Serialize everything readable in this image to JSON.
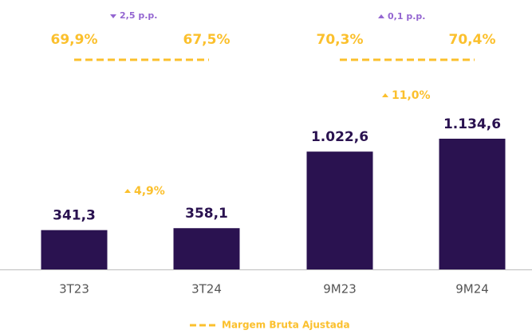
{
  "chart_data": {
    "type": "bar",
    "categories": [
      "3T23",
      "3T24",
      "9M23",
      "9M24"
    ],
    "values": [
      341.3,
      358.1,
      1022.6,
      1134.6
    ],
    "value_labels": [
      "341,3",
      "358,1",
      "1.022,6",
      "1.134,6"
    ],
    "color": "#2a1250",
    "margin": {
      "name": "Margem Bruta Ajustada",
      "color": "#fbc02d",
      "values": [
        69.9,
        67.5,
        70.3,
        70.4
      ],
      "value_labels": [
        "69,9%",
        "67,5%",
        "70,3%",
        "70,4%"
      ]
    },
    "annotations": [
      {
        "text": "2,5 p.p.",
        "direction": "down",
        "color": "#9466d1"
      },
      {
        "text": "0,1 p.p.",
        "direction": "up",
        "color": "#9466d1"
      },
      {
        "text": "4,9%",
        "direction": "up",
        "color": "#fbc02d"
      },
      {
        "text": "11,0%",
        "direction": "up",
        "color": "#fbc02d"
      }
    ]
  }
}
